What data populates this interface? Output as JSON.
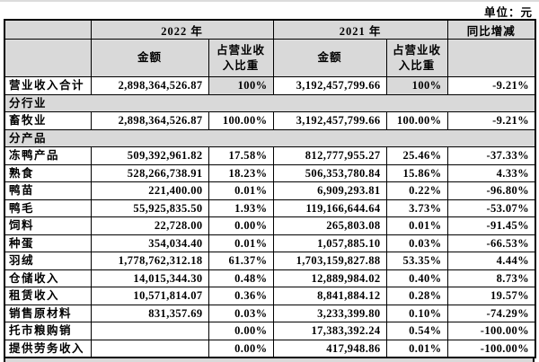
{
  "unit_label": "单位：元",
  "colors": {
    "shaded_cell_bg": "#d9d9d9",
    "border": "#000000",
    "page_bg": "#ffffff"
  },
  "table": {
    "header": {
      "year_2022": "2022 年",
      "year_2021": "2021 年",
      "yoy": "同比增减",
      "amount": "金额",
      "pct_of_revenue": "占营业收入比重"
    },
    "rows": [
      {
        "type": "data",
        "label": "营业收入合计",
        "a2022": "2,898,364,526.87",
        "p2022": "100%",
        "a2021": "3,192,457,799.66",
        "p2021": "100%",
        "yoy": "-9.21%",
        "pct_shaded": true
      },
      {
        "type": "section",
        "label": "分行业"
      },
      {
        "type": "data",
        "label": "畜牧业",
        "a2022": "2,898,364,526.87",
        "p2022": "100.00%",
        "a2021": "3,192,457,799.66",
        "p2021": "100.00%",
        "yoy": "-9.21%",
        "pct_shaded": false
      },
      {
        "type": "section",
        "label": "分产品"
      },
      {
        "type": "data",
        "label": "冻鸭产品",
        "a2022": "509,392,961.82",
        "p2022": "17.58%",
        "a2021": "812,777,955.27",
        "p2021": "25.46%",
        "yoy": "-37.33%",
        "pct_shaded": false
      },
      {
        "type": "data",
        "label": "熟食",
        "a2022": "528,266,738.91",
        "p2022": "18.23%",
        "a2021": "506,353,780.84",
        "p2021": "15.86%",
        "yoy": "4.33%",
        "pct_shaded": false
      },
      {
        "type": "data",
        "label": "鸭苗",
        "a2022": "221,400.00",
        "p2022": "0.01%",
        "a2021": "6,909,293.81",
        "p2021": "0.22%",
        "yoy": "-96.80%",
        "pct_shaded": false
      },
      {
        "type": "data",
        "label": "鸭毛",
        "a2022": "55,925,835.50",
        "p2022": "1.93%",
        "a2021": "119,166,644.64",
        "p2021": "3.73%",
        "yoy": "-53.07%",
        "pct_shaded": false
      },
      {
        "type": "data",
        "label": "饲料",
        "a2022": "22,728.00",
        "p2022": "0.00%",
        "a2021": "265,803.08",
        "p2021": "0.01%",
        "yoy": "-91.45%",
        "pct_shaded": false
      },
      {
        "type": "data",
        "label": "种蛋",
        "a2022": "354,034.40",
        "p2022": "0.01%",
        "a2021": "1,057,885.10",
        "p2021": "0.03%",
        "yoy": "-66.53%",
        "pct_shaded": false
      },
      {
        "type": "data",
        "label": "羽绒",
        "a2022": "1,778,762,312.18",
        "p2022": "61.37%",
        "a2021": "1,703,159,827.88",
        "p2021": "53.35%",
        "yoy": "4.44%",
        "pct_shaded": false
      },
      {
        "type": "data",
        "label": "仓储收入",
        "a2022": "14,015,344.30",
        "p2022": "0.48%",
        "a2021": "12,889,984.02",
        "p2021": "0.40%",
        "yoy": "8.73%",
        "pct_shaded": false
      },
      {
        "type": "data",
        "label": "租赁收入",
        "a2022": "10,571,814.07",
        "p2022": "0.36%",
        "a2021": "8,841,884.12",
        "p2021": "0.28%",
        "yoy": "19.57%",
        "pct_shaded": false
      },
      {
        "type": "data",
        "label": "销售原材料",
        "a2022": "831,357.69",
        "p2022": "0.03%",
        "a2021": "3,233,399.80",
        "p2021": "0.10%",
        "yoy": "-74.29%",
        "pct_shaded": false
      },
      {
        "type": "data",
        "label": "托市粮购销",
        "a2022": "",
        "p2022": "0.00%",
        "a2021": "17,383,392.24",
        "p2021": "0.54%",
        "yoy": "-100.00%",
        "pct_shaded": false
      },
      {
        "type": "data",
        "label": "提供劳务收入",
        "a2022": "",
        "p2022": "0.00%",
        "a2021": "417,948.86",
        "p2021": "0.01%",
        "yoy": "-100.00%",
        "pct_shaded": false
      }
    ]
  }
}
